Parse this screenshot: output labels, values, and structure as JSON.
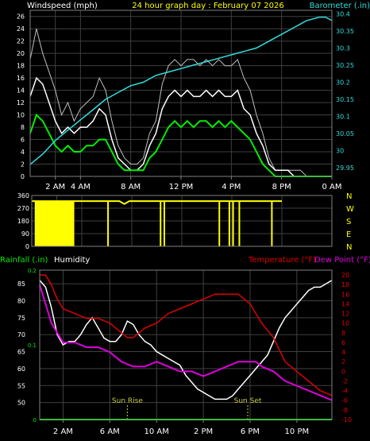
{
  "colors": {
    "background": "#000000",
    "axis": "#808080",
    "grid": "#404040",
    "tick_label": "#ffffff",
    "wind_speed": "#ffffff",
    "wind_gust": "#c0c0c0",
    "wind_avg": "#00ee00",
    "barometer": "#33dddd",
    "title": "#ffff00",
    "direction": "#ffff00",
    "rain": "#00ee00",
    "humidity": "#ffffff",
    "temperature": "#dd0000",
    "dewpoint": "#dd00dd",
    "sun": "#cccc44"
  },
  "chart_data": [
    {
      "type": "line",
      "title": "24 hour graph day : February 07 2026",
      "ylabel": "Windspeed (mph)",
      "y2label": "Barometer (.in)",
      "xticks": [
        "2 AM",
        "4 AM",
        "8 AM",
        "12 PM",
        "4 PM",
        "8 PM",
        "0 AM"
      ],
      "xtick_hours": [
        2,
        4,
        8,
        12,
        16,
        20,
        24
      ],
      "xlim": [
        0,
        24
      ],
      "ylim": [
        0,
        27
      ],
      "yticks": [
        0,
        2,
        4,
        6,
        8,
        10,
        12,
        14,
        16,
        18,
        20,
        22,
        24,
        26
      ],
      "y2lim": [
        29.925,
        30.41
      ],
      "y2ticks": [
        "29.95",
        "30",
        "30.05",
        "30.1",
        "30.15",
        "30.2",
        "30.25",
        "30.3",
        "30.35",
        "30.4"
      ],
      "y2tick_values": [
        29.95,
        30.0,
        30.05,
        30.1,
        30.15,
        30.2,
        30.25,
        30.3,
        30.35,
        30.4
      ],
      "grid": true,
      "series": [
        {
          "key": "wind_gust",
          "x": [
            0,
            0.5,
            1,
            1.5,
            2,
            2.5,
            3,
            3.5,
            4,
            4.5,
            5,
            5.5,
            6,
            6.5,
            7,
            7.5,
            8,
            8.5,
            9,
            9.5,
            10,
            10.5,
            11,
            11.5,
            12,
            12.5,
            13,
            13.5,
            14,
            14.5,
            15,
            15.5,
            16,
            16.5,
            17,
            17.5,
            18,
            18.5,
            19,
            19.5,
            20,
            20.5,
            21,
            21.5,
            22,
            22.5,
            23,
            23.5,
            24
          ],
          "values": [
            19,
            24,
            20,
            17,
            14,
            10,
            12,
            9,
            11,
            12,
            13,
            16,
            14,
            9,
            5,
            3,
            2,
            2,
            3,
            7,
            9,
            15,
            18,
            19,
            18,
            19,
            19,
            18,
            19,
            18,
            19,
            18,
            18,
            19,
            16,
            14,
            10,
            7,
            3,
            1,
            1,
            1,
            1,
            1,
            0,
            0,
            0,
            0,
            0
          ]
        },
        {
          "key": "wind_speed",
          "x": [
            0,
            0.5,
            1,
            1.5,
            2,
            2.5,
            3,
            3.5,
            4,
            4.5,
            5,
            5.5,
            6,
            6.5,
            7,
            7.5,
            8,
            8.5,
            9,
            9.5,
            10,
            10.5,
            11,
            11.5,
            12,
            12.5,
            13,
            13.5,
            14,
            14.5,
            15,
            15.5,
            16,
            16.5,
            17,
            17.5,
            18,
            18.5,
            19,
            19.5,
            20,
            20.5,
            21,
            21.5,
            22,
            22.5,
            23,
            23.5,
            24
          ],
          "values": [
            13,
            16,
            15,
            12,
            9,
            7,
            8,
            7,
            8,
            8,
            9,
            11,
            10,
            6,
            3,
            2,
            1,
            1,
            2,
            5,
            7,
            11,
            13,
            14,
            13,
            14,
            13,
            13,
            14,
            13,
            14,
            13,
            13,
            14,
            11,
            10,
            7,
            5,
            2,
            1,
            1,
            1,
            0,
            0,
            0,
            0,
            0,
            0,
            0
          ]
        },
        {
          "key": "wind_avg",
          "x": [
            0,
            0.5,
            1,
            1.5,
            2,
            2.5,
            3,
            3.5,
            4,
            4.5,
            5,
            5.5,
            6,
            6.5,
            7,
            7.5,
            8,
            8.5,
            9,
            9.5,
            10,
            10.5,
            11,
            11.5,
            12,
            12.5,
            13,
            13.5,
            14,
            14.5,
            15,
            15.5,
            16,
            16.5,
            17,
            17.5,
            18,
            18.5,
            19,
            19.5,
            20,
            20.5,
            21,
            21.5,
            22,
            22.5,
            23,
            23.5,
            24
          ],
          "values": [
            7,
            10,
            9,
            7,
            5,
            4,
            5,
            4,
            4,
            5,
            5,
            6,
            6,
            4,
            2,
            1,
            1,
            1,
            1,
            3,
            4,
            6,
            8,
            9,
            8,
            9,
            8,
            9,
            9,
            8,
            9,
            8,
            9,
            8,
            7,
            6,
            4,
            2,
            1,
            0,
            0,
            0,
            0,
            0,
            0,
            0,
            0,
            0,
            0
          ]
        },
        {
          "key": "barometer",
          "axis": "right",
          "x": [
            0,
            1,
            2,
            3,
            4,
            5,
            6,
            7,
            8,
            9,
            10,
            11,
            12,
            13,
            14,
            15,
            16,
            17,
            18,
            19,
            20,
            21,
            22,
            23,
            23.5,
            24
          ],
          "values": [
            29.96,
            29.99,
            30.03,
            30.06,
            30.09,
            30.12,
            30.15,
            30.17,
            30.19,
            30.2,
            30.22,
            30.23,
            30.24,
            30.25,
            30.26,
            30.27,
            30.28,
            30.29,
            30.3,
            30.32,
            30.34,
            30.36,
            30.38,
            30.39,
            30.39,
            30.38
          ]
        }
      ]
    },
    {
      "type": "line",
      "yticks": [
        "360",
        "270",
        "180",
        "90",
        "0"
      ],
      "ytick_values": [
        360,
        270,
        180,
        90,
        0
      ],
      "compass": [
        "N",
        "W",
        "S",
        "E",
        "N"
      ],
      "ylim": [
        0,
        360
      ],
      "xlim": [
        0,
        24
      ],
      "grid": true,
      "series": [
        {
          "key": "direction",
          "x": [
            0,
            3.5,
            7,
            7.4,
            7.8,
            10,
            16,
            20
          ],
          "values": [
            320,
            320,
            320,
            300,
            320,
            320,
            320,
            320
          ]
        }
      ],
      "spikes_hours": [
        0.3,
        0.6,
        0.9,
        1.2,
        1.5,
        1.8,
        2.1,
        2.4,
        2.7,
        3.0,
        3.3,
        6.1,
        10.3,
        10.6,
        15.0,
        15.8,
        16.1,
        16.6,
        19.2
      ]
    },
    {
      "type": "line",
      "legend": [
        "Rainfall (.in)",
        "Humidity",
        "Temperature (°F)",
        "Dew Point (°F)"
      ],
      "xticks": [
        "2 AM",
        "6 AM",
        "10 AM",
        "2 PM",
        "6 PM",
        "10 PM"
      ],
      "xtick_hours": [
        2,
        6,
        10,
        14,
        18,
        22
      ],
      "xlim": [
        0,
        25
      ],
      "ylim": [
        45,
        89
      ],
      "yticks": [
        50,
        55,
        60,
        65,
        70,
        75,
        80,
        85
      ],
      "rain_ticks": [
        "0",
        "0.1",
        "0.2"
      ],
      "rain_tick_values": [
        0,
        0.1,
        0.2
      ],
      "rain_lim": [
        0,
        0.2
      ],
      "y2lim": [
        -10,
        21
      ],
      "y2ticks": [
        -10,
        -8,
        -6,
        -4,
        -2,
        0,
        2,
        4,
        6,
        8,
        10,
        12,
        14,
        16,
        18,
        20
      ],
      "grid": true,
      "annotations": [
        {
          "text": "Sun Rise",
          "hour": 7.5
        },
        {
          "text": "Sun Set",
          "hour": 17.8
        }
      ],
      "series": [
        {
          "key": "humidity",
          "x": [
            0,
            0.5,
            1,
            1.5,
            2,
            2.5,
            3,
            3.5,
            4,
            4.5,
            5,
            5.5,
            6,
            6.5,
            7,
            7.5,
            8,
            8.5,
            9,
            9.5,
            10,
            10.5,
            11,
            11.5,
            12,
            12.5,
            13,
            13.5,
            14,
            14.5,
            15,
            15.5,
            16,
            16.5,
            17,
            17.5,
            18,
            18.5,
            19,
            19.5,
            20,
            20.5,
            21,
            21.5,
            22,
            22.5,
            23,
            23.5,
            24,
            24.5,
            25
          ],
          "values": [
            86,
            84,
            78,
            70,
            67,
            68,
            68,
            70,
            73,
            75,
            72,
            69,
            68,
            68,
            70,
            74,
            73,
            70,
            68,
            67,
            65,
            64,
            63,
            62,
            61,
            58,
            56,
            54,
            53,
            52,
            51,
            51,
            51,
            52,
            54,
            56,
            58,
            60,
            62,
            64,
            68,
            72,
            75,
            77,
            79,
            81,
            83,
            84,
            84,
            85,
            86
          ]
        },
        {
          "key": "temperature",
          "axis": "right",
          "x": [
            0,
            0.5,
            1,
            1.5,
            2,
            3,
            4,
            5,
            6,
            7,
            7.5,
            8,
            8.5,
            9,
            10,
            11,
            12,
            13,
            14,
            15,
            16,
            17,
            17.5,
            18,
            18.5,
            19,
            20,
            21,
            22,
            23,
            24,
            25
          ],
          "values": [
            20,
            20,
            18,
            15,
            13,
            12,
            11,
            11,
            10,
            8,
            7,
            7,
            8,
            9,
            10,
            12,
            13,
            14,
            15,
            16,
            16,
            16,
            15,
            14,
            12,
            10,
            7,
            2,
            0,
            -2,
            -4,
            -5
          ]
        },
        {
          "key": "dewpoint",
          "axis": "right",
          "x": [
            0,
            0.5,
            1,
            1.5,
            2,
            3,
            4,
            5,
            6,
            7,
            8,
            9,
            10,
            11,
            12,
            13,
            14,
            15,
            16,
            17,
            18,
            18.5,
            19,
            20,
            21,
            22,
            23,
            24,
            25
          ],
          "values": [
            18,
            14,
            10,
            8,
            6,
            6,
            5,
            5,
            4,
            2,
            1,
            1,
            2,
            1,
            0,
            0,
            -1,
            0,
            1,
            2,
            2,
            2,
            1,
            0,
            -2,
            -3,
            -4,
            -5,
            -6
          ]
        },
        {
          "key": "rain",
          "axis": "rain",
          "x": [
            0,
            25
          ],
          "values": [
            0,
            0
          ]
        }
      ]
    }
  ]
}
